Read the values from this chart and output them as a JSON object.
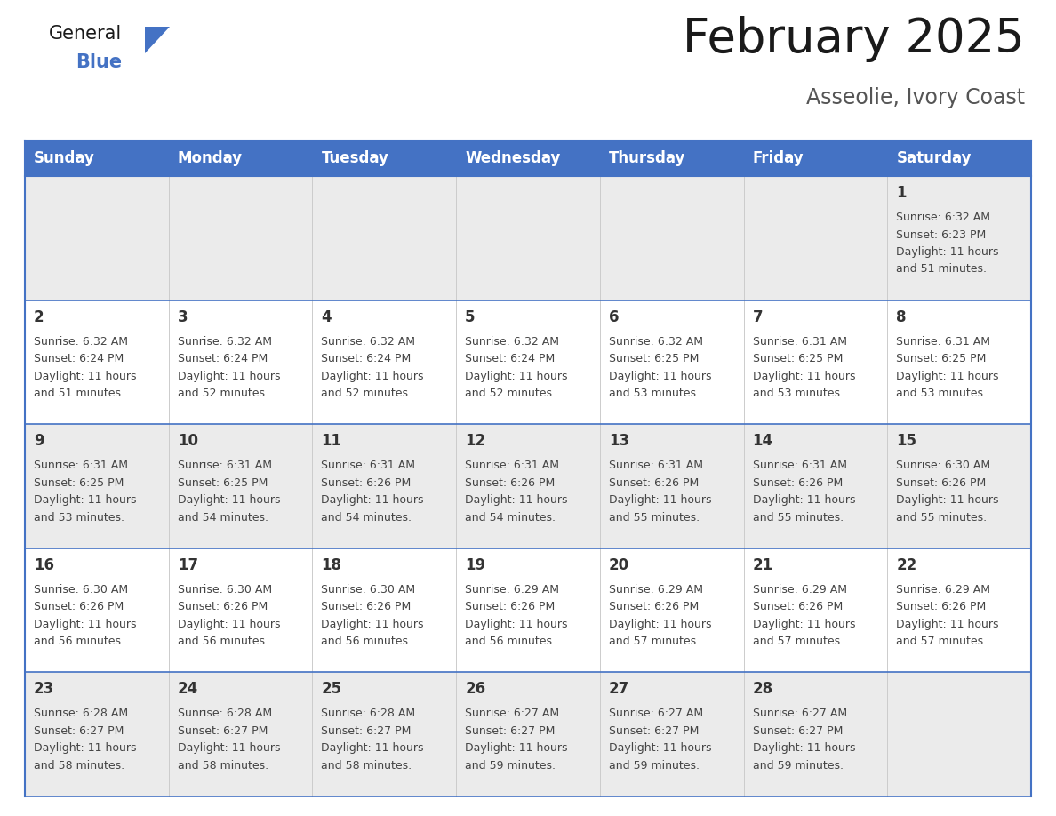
{
  "title": "February 2025",
  "subtitle": "Asseolie, Ivory Coast",
  "header_bg": "#4472C4",
  "header_text_color": "#FFFFFF",
  "cell_bg_light": "#EBEBEB",
  "cell_bg_white": "#FFFFFF",
  "grid_line_color": "#4472C4",
  "col_divider_color": "#CCCCCC",
  "day_number_color": "#333333",
  "cell_text_color": "#444444",
  "title_color": "#1a1a1a",
  "subtitle_color": "#555555",
  "logo_general_color": "#1a1a1a",
  "logo_blue_color": "#4472C4",
  "logo_triangle_color": "#4472C4",
  "day_headers": [
    "Sunday",
    "Monday",
    "Tuesday",
    "Wednesday",
    "Thursday",
    "Friday",
    "Saturday"
  ],
  "weeks": [
    [
      {
        "day": null,
        "sunrise": null,
        "sunset": null,
        "daylight_h": null,
        "daylight_m": null
      },
      {
        "day": null,
        "sunrise": null,
        "sunset": null,
        "daylight_h": null,
        "daylight_m": null
      },
      {
        "day": null,
        "sunrise": null,
        "sunset": null,
        "daylight_h": null,
        "daylight_m": null
      },
      {
        "day": null,
        "sunrise": null,
        "sunset": null,
        "daylight_h": null,
        "daylight_m": null
      },
      {
        "day": null,
        "sunrise": null,
        "sunset": null,
        "daylight_h": null,
        "daylight_m": null
      },
      {
        "day": null,
        "sunrise": null,
        "sunset": null,
        "daylight_h": null,
        "daylight_m": null
      },
      {
        "day": 1,
        "sunrise": "6:32 AM",
        "sunset": "6:23 PM",
        "daylight_h": "11 hours",
        "daylight_m": "51 minutes."
      }
    ],
    [
      {
        "day": 2,
        "sunrise": "6:32 AM",
        "sunset": "6:24 PM",
        "daylight_h": "11 hours",
        "daylight_m": "51 minutes."
      },
      {
        "day": 3,
        "sunrise": "6:32 AM",
        "sunset": "6:24 PM",
        "daylight_h": "11 hours",
        "daylight_m": "52 minutes."
      },
      {
        "day": 4,
        "sunrise": "6:32 AM",
        "sunset": "6:24 PM",
        "daylight_h": "11 hours",
        "daylight_m": "52 minutes."
      },
      {
        "day": 5,
        "sunrise": "6:32 AM",
        "sunset": "6:24 PM",
        "daylight_h": "11 hours",
        "daylight_m": "52 minutes."
      },
      {
        "day": 6,
        "sunrise": "6:32 AM",
        "sunset": "6:25 PM",
        "daylight_h": "11 hours",
        "daylight_m": "53 minutes."
      },
      {
        "day": 7,
        "sunrise": "6:31 AM",
        "sunset": "6:25 PM",
        "daylight_h": "11 hours",
        "daylight_m": "53 minutes."
      },
      {
        "day": 8,
        "sunrise": "6:31 AM",
        "sunset": "6:25 PM",
        "daylight_h": "11 hours",
        "daylight_m": "53 minutes."
      }
    ],
    [
      {
        "day": 9,
        "sunrise": "6:31 AM",
        "sunset": "6:25 PM",
        "daylight_h": "11 hours",
        "daylight_m": "53 minutes."
      },
      {
        "day": 10,
        "sunrise": "6:31 AM",
        "sunset": "6:25 PM",
        "daylight_h": "11 hours",
        "daylight_m": "54 minutes."
      },
      {
        "day": 11,
        "sunrise": "6:31 AM",
        "sunset": "6:26 PM",
        "daylight_h": "11 hours",
        "daylight_m": "54 minutes."
      },
      {
        "day": 12,
        "sunrise": "6:31 AM",
        "sunset": "6:26 PM",
        "daylight_h": "11 hours",
        "daylight_m": "54 minutes."
      },
      {
        "day": 13,
        "sunrise": "6:31 AM",
        "sunset": "6:26 PM",
        "daylight_h": "11 hours",
        "daylight_m": "55 minutes."
      },
      {
        "day": 14,
        "sunrise": "6:31 AM",
        "sunset": "6:26 PM",
        "daylight_h": "11 hours",
        "daylight_m": "55 minutes."
      },
      {
        "day": 15,
        "sunrise": "6:30 AM",
        "sunset": "6:26 PM",
        "daylight_h": "11 hours",
        "daylight_m": "55 minutes."
      }
    ],
    [
      {
        "day": 16,
        "sunrise": "6:30 AM",
        "sunset": "6:26 PM",
        "daylight_h": "11 hours",
        "daylight_m": "56 minutes."
      },
      {
        "day": 17,
        "sunrise": "6:30 AM",
        "sunset": "6:26 PM",
        "daylight_h": "11 hours",
        "daylight_m": "56 minutes."
      },
      {
        "day": 18,
        "sunrise": "6:30 AM",
        "sunset": "6:26 PM",
        "daylight_h": "11 hours",
        "daylight_m": "56 minutes."
      },
      {
        "day": 19,
        "sunrise": "6:29 AM",
        "sunset": "6:26 PM",
        "daylight_h": "11 hours",
        "daylight_m": "56 minutes."
      },
      {
        "day": 20,
        "sunrise": "6:29 AM",
        "sunset": "6:26 PM",
        "daylight_h": "11 hours",
        "daylight_m": "57 minutes."
      },
      {
        "day": 21,
        "sunrise": "6:29 AM",
        "sunset": "6:26 PM",
        "daylight_h": "11 hours",
        "daylight_m": "57 minutes."
      },
      {
        "day": 22,
        "sunrise": "6:29 AM",
        "sunset": "6:26 PM",
        "daylight_h": "11 hours",
        "daylight_m": "57 minutes."
      }
    ],
    [
      {
        "day": 23,
        "sunrise": "6:28 AM",
        "sunset": "6:27 PM",
        "daylight_h": "11 hours",
        "daylight_m": "58 minutes."
      },
      {
        "day": 24,
        "sunrise": "6:28 AM",
        "sunset": "6:27 PM",
        "daylight_h": "11 hours",
        "daylight_m": "58 minutes."
      },
      {
        "day": 25,
        "sunrise": "6:28 AM",
        "sunset": "6:27 PM",
        "daylight_h": "11 hours",
        "daylight_m": "58 minutes."
      },
      {
        "day": 26,
        "sunrise": "6:27 AM",
        "sunset": "6:27 PM",
        "daylight_h": "11 hours",
        "daylight_m": "59 minutes."
      },
      {
        "day": 27,
        "sunrise": "6:27 AM",
        "sunset": "6:27 PM",
        "daylight_h": "11 hours",
        "daylight_m": "59 minutes."
      },
      {
        "day": 28,
        "sunrise": "6:27 AM",
        "sunset": "6:27 PM",
        "daylight_h": "11 hours",
        "daylight_m": "59 minutes."
      },
      {
        "day": null,
        "sunrise": null,
        "sunset": null,
        "daylight_h": null,
        "daylight_m": null
      }
    ]
  ]
}
